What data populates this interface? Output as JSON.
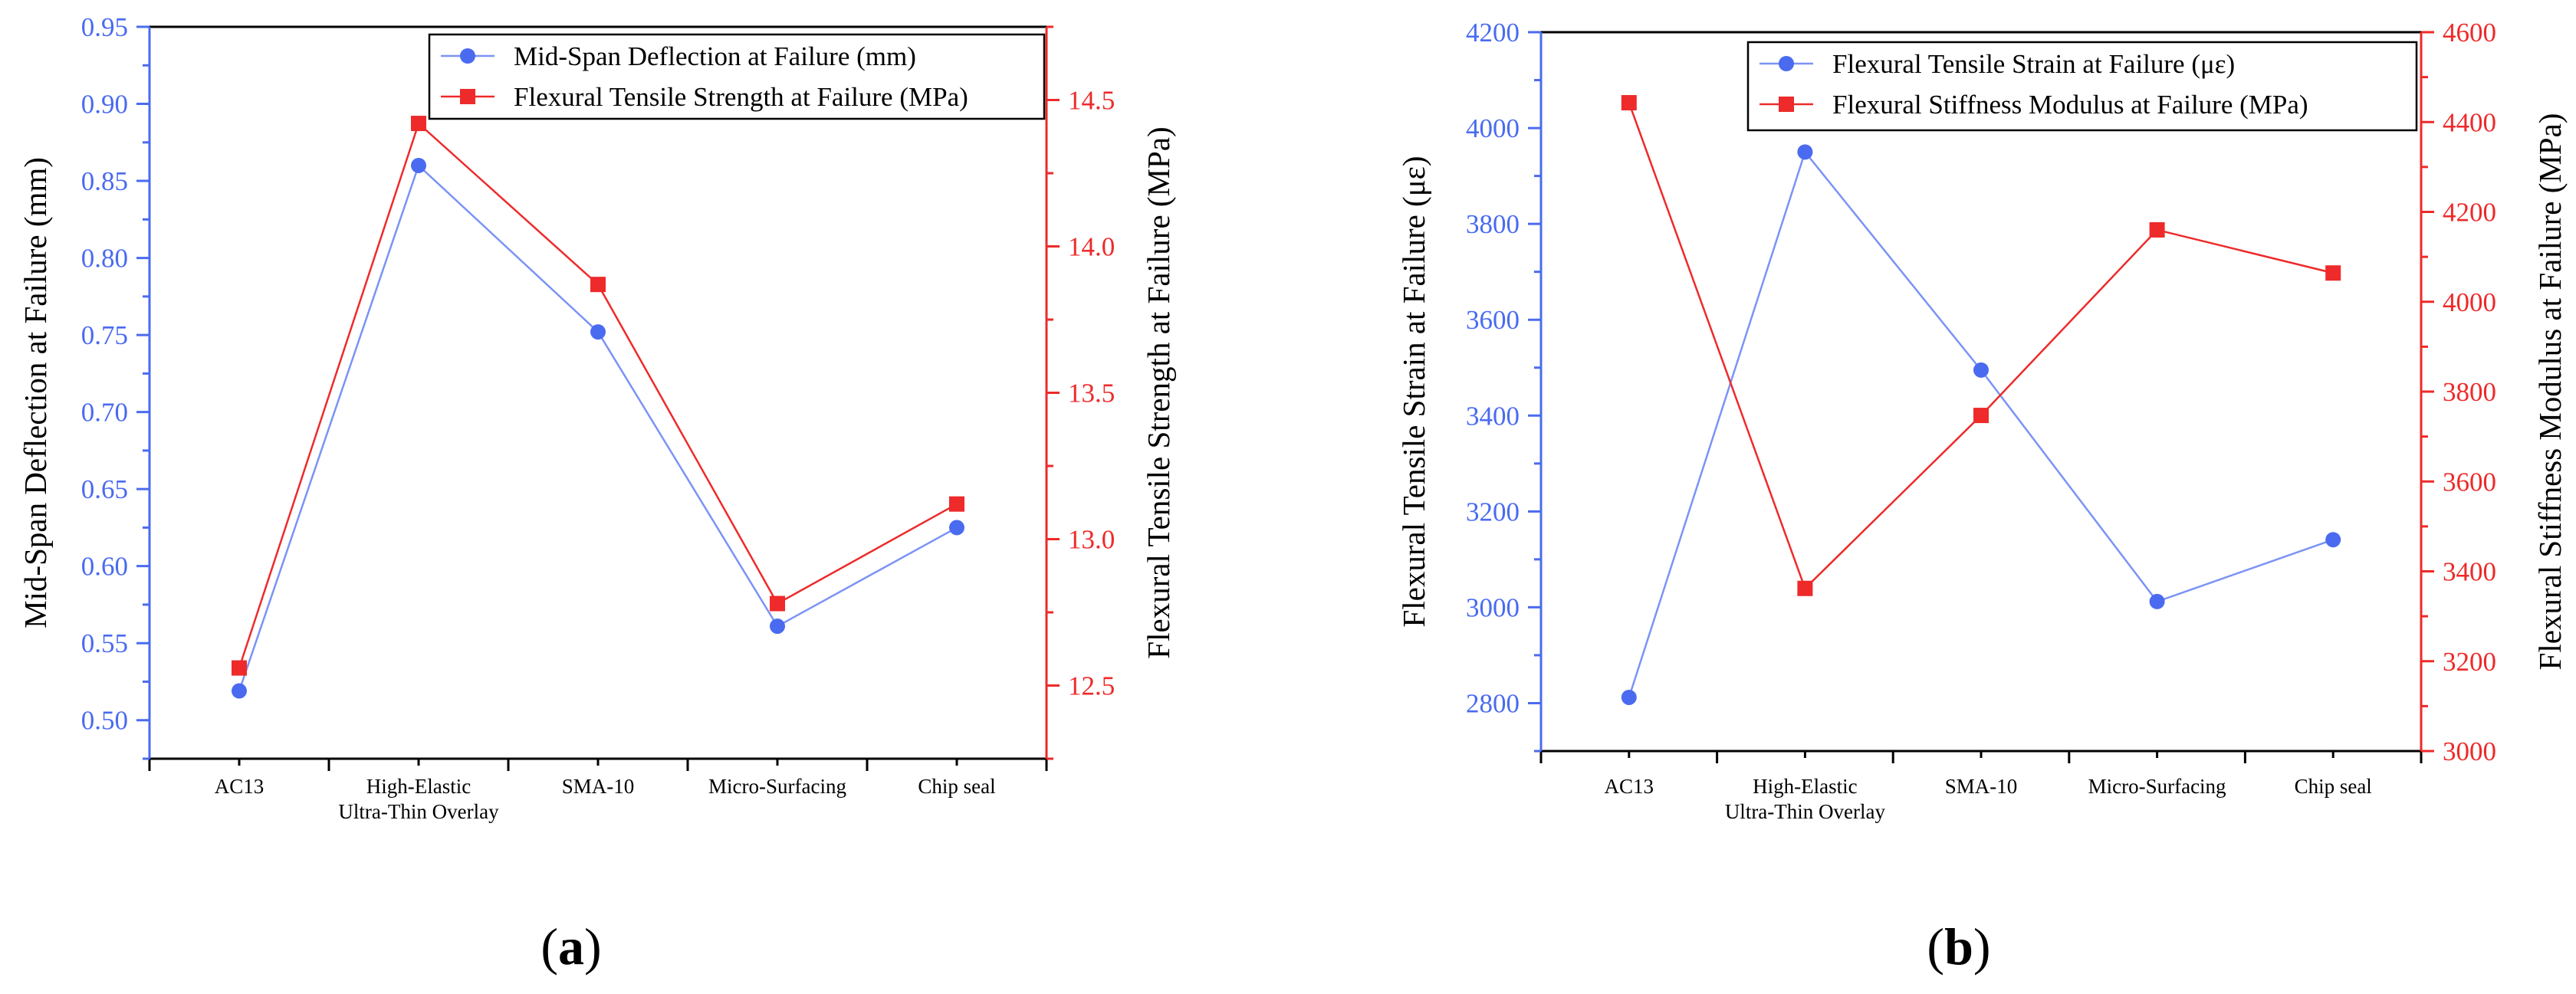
{
  "chart_data": [
    {
      "type": "line",
      "panel_label": "(a)",
      "categories": [
        "AC13",
        "High-Elastic\nUltra-Thin Overlay",
        "SMA-10",
        "Micro-Surfacing",
        "Chip seal"
      ],
      "left_axis": {
        "label": "Mid-Span Deflection at Failure (mm)",
        "range": [
          0.475,
          0.95
        ],
        "ticks": [
          "0.50",
          "0.55",
          "0.60",
          "0.65",
          "0.70",
          "0.75",
          "0.80",
          "0.85",
          "0.90",
          "0.95"
        ],
        "color": "#4a6bf0"
      },
      "right_axis": {
        "label": "Flexural Tensile Strength at Failure (MPa)",
        "range": [
          12.25,
          14.75
        ],
        "ticks": [
          "12.5",
          "13.0",
          "13.5",
          "14.0",
          "14.5"
        ],
        "color": "#ee2a2a"
      },
      "series": [
        {
          "name": "Mid-Span Deflection at Failure (mm)",
          "axis": "left",
          "marker": "circle",
          "color": "#4a6bf0",
          "line_color": "#7b93f5",
          "values": [
            0.519,
            0.86,
            0.752,
            0.561,
            0.625
          ]
        },
        {
          "name": "Flexural Tensile Strength at Failure (MPa)",
          "axis": "right",
          "marker": "square",
          "color": "#ee2a2a",
          "line_color": "#ee2a2a",
          "values": [
            12.56,
            14.42,
            13.87,
            12.78,
            13.12
          ]
        }
      ],
      "legend": "top-right"
    },
    {
      "type": "line",
      "panel_label": "(b)",
      "categories": [
        "AC13",
        "High-Elastic\nUltra-Thin Overlay",
        "SMA-10",
        "Micro-Surfacing",
        "Chip seal"
      ],
      "left_axis": {
        "label": "Flexural Tensile Strain at Failure (με)",
        "range": [
          2700,
          4200
        ],
        "ticks": [
          "2800",
          "3000",
          "3200",
          "3400",
          "3600",
          "3800",
          "4000",
          "4200"
        ],
        "color": "#4a6bf0"
      },
      "right_axis": {
        "label": "Flexural Stiffness Modulus at Failure (MPa)",
        "range": [
          3000,
          4600
        ],
        "ticks": [
          "3000",
          "3200",
          "3400",
          "3600",
          "3800",
          "4000",
          "4200",
          "4400",
          "4600"
        ],
        "color": "#ee2a2a"
      },
      "series": [
        {
          "name": "Flexural Tensile Strain at Failure (με)",
          "axis": "left",
          "marker": "circle",
          "color": "#4a6bf0",
          "line_color": "#7b93f5",
          "values": [
            2812,
            3950,
            3495,
            3012,
            3141
          ]
        },
        {
          "name": "Flexural Stiffness Modulus at Failure (MPa)",
          "axis": "right",
          "marker": "square",
          "color": "#ee2a2a",
          "line_color": "#ee2a2a",
          "values": [
            4443,
            3362,
            3747,
            4160,
            4064
          ]
        }
      ],
      "legend": "top-right"
    }
  ]
}
